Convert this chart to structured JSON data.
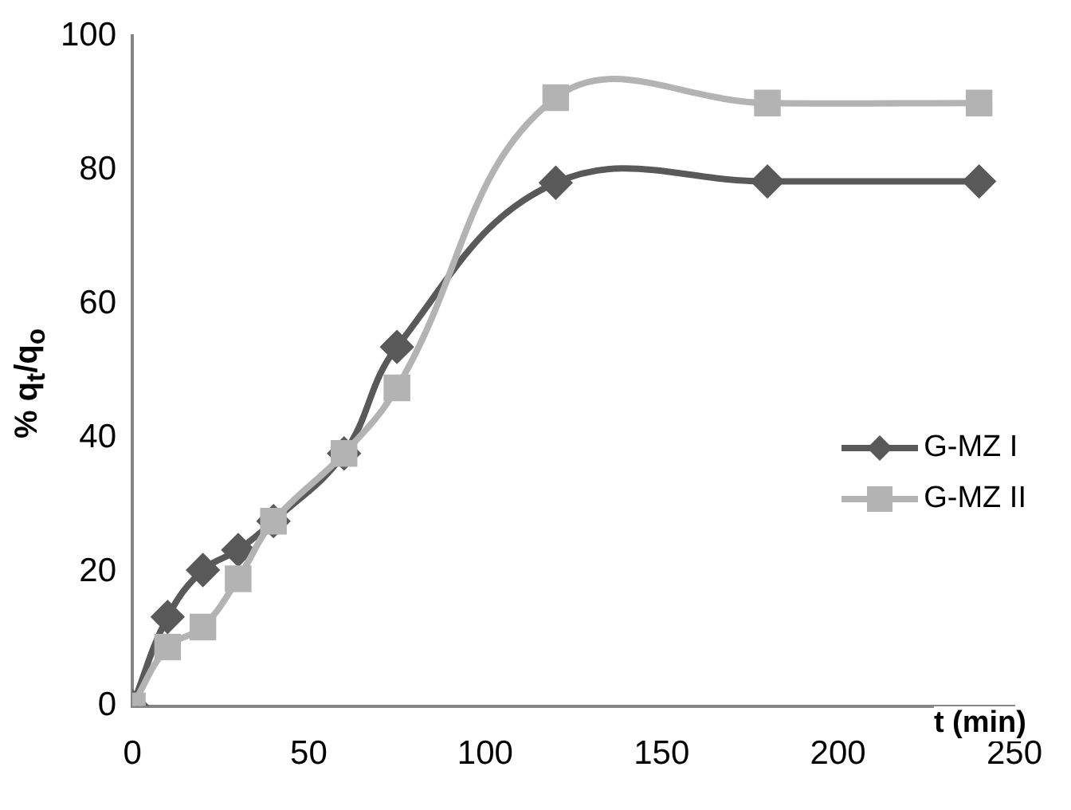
{
  "chart_data": {
    "type": "line",
    "xlabel": "t (min)",
    "ylabel": "% q$_{t}$/q$_{o}$",
    "x": [
      0,
      10,
      20,
      30,
      40,
      60,
      75,
      120,
      180,
      240
    ],
    "xlim": [
      0,
      250
    ],
    "xticks": [
      0,
      50,
      100,
      150,
      200,
      250
    ],
    "ylim": [
      0,
      100
    ],
    "yticks": [
      0,
      20,
      40,
      60,
      80,
      100
    ],
    "grid": false,
    "legend": "right",
    "series": [
      {
        "name": "G-MZ I",
        "color": "#595959",
        "marker": "diamond",
        "values": [
          0,
          13.3,
          20.3,
          23.3,
          27.6,
          37.7,
          53.6,
          78.1,
          78.3,
          78.3
        ]
      },
      {
        "name": "G-MZ II",
        "color": "#b3b3b3",
        "marker": "square",
        "values": [
          0,
          8.8,
          11.8,
          19,
          27.6,
          37.7,
          47.5,
          90.8,
          90,
          90
        ]
      }
    ]
  }
}
